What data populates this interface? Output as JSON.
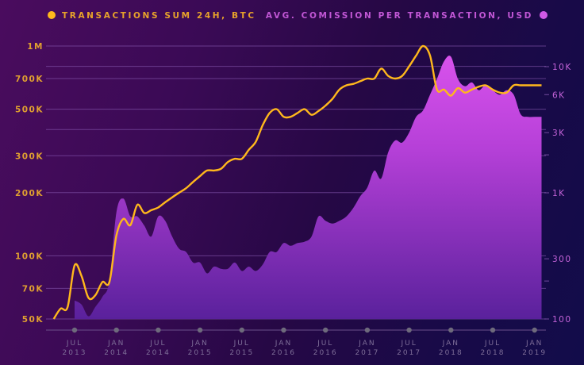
{
  "legend": {
    "left_label": "TRANSACTIONS SUM 24H, BTC",
    "right_label": "AVG. COMISSION PER TRANSACTION, USD"
  },
  "colors": {
    "line": "#ffb81c",
    "area_top": "#d24fe6",
    "area_bottom": "#5e20a0",
    "left_axis_text": "#e0a030",
    "right_axis_text": "#c463d8",
    "grid": "#8a5ab0"
  },
  "chart_data": {
    "type": "line+area",
    "title": "",
    "x_ticks": [
      {
        "line1": "JUL",
        "line2": "2013"
      },
      {
        "line1": "JAN",
        "line2": "2014"
      },
      {
        "line1": "JUL",
        "line2": "2014"
      },
      {
        "line1": "JAN",
        "line2": "2015"
      },
      {
        "line1": "JUL",
        "line2": "2015"
      },
      {
        "line1": "JAN",
        "line2": "2016"
      },
      {
        "line1": "JUL",
        "line2": "2016"
      },
      {
        "line1": "JAN",
        "line2": "2017"
      },
      {
        "line1": "JUL",
        "line2": "2017"
      },
      {
        "line1": "JAN",
        "line2": "2018"
      },
      {
        "line1": "JUL",
        "line2": "2018"
      },
      {
        "line1": "JAN",
        "line2": "2019"
      }
    ],
    "left_axis": {
      "label": "TRANSACTIONS SUM 24H, BTC",
      "scale": "log",
      "range": [
        50000,
        1000000
      ],
      "ticks": [
        "1M",
        "700K",
        "500K",
        "300K",
        "200K",
        "100K",
        "70K",
        "50K"
      ],
      "tick_values": [
        1000000,
        700000,
        500000,
        300000,
        200000,
        100000,
        70000,
        50000
      ]
    },
    "right_axis": {
      "label": "AVG. COMISSION PER TRANSACTION, USD",
      "scale": "log",
      "range": [
        100,
        10000
      ],
      "ticks": [
        "10K",
        "6K",
        "3K",
        "1K",
        "300",
        "100"
      ],
      "tick_values": [
        10000,
        6000,
        3000,
        1000,
        300,
        100
      ]
    },
    "series": [
      {
        "name": "TRANSACTIONS SUM 24H, BTC",
        "type": "line",
        "axis": "left",
        "x": [
          "2013-04",
          "2013-05",
          "2013-06",
          "2013-07",
          "2013-08",
          "2013-09",
          "2013-10",
          "2013-11",
          "2013-12",
          "2014-01",
          "2014-02",
          "2014-03",
          "2014-04",
          "2014-05",
          "2014-06",
          "2014-07",
          "2014-08",
          "2014-09",
          "2014-10",
          "2014-11",
          "2014-12",
          "2015-01",
          "2015-02",
          "2015-03",
          "2015-04",
          "2015-05",
          "2015-06",
          "2015-07",
          "2015-08",
          "2015-09",
          "2015-10",
          "2015-11",
          "2015-12",
          "2016-01",
          "2016-02",
          "2016-03",
          "2016-04",
          "2016-05",
          "2016-06",
          "2016-07",
          "2016-08",
          "2016-09",
          "2016-10",
          "2016-11",
          "2016-12",
          "2017-01",
          "2017-02",
          "2017-03",
          "2017-04",
          "2017-05",
          "2017-06",
          "2017-07",
          "2017-08",
          "2017-09",
          "2017-10",
          "2017-11",
          "2017-12",
          "2018-01",
          "2018-02",
          "2018-03",
          "2018-04",
          "2018-05",
          "2018-06",
          "2018-07",
          "2018-08",
          "2018-09",
          "2018-10",
          "2018-11",
          "2018-12",
          "2019-01",
          "2019-02"
        ],
        "values": [
          50000,
          56000,
          57000,
          90000,
          80000,
          63000,
          65000,
          75000,
          75000,
          125000,
          150000,
          140000,
          175000,
          160000,
          165000,
          170000,
          180000,
          190000,
          200000,
          210000,
          225000,
          240000,
          255000,
          255000,
          260000,
          280000,
          290000,
          290000,
          320000,
          350000,
          420000,
          480000,
          500000,
          460000,
          460000,
          480000,
          500000,
          470000,
          490000,
          520000,
          560000,
          620000,
          650000,
          660000,
          680000,
          700000,
          700000,
          780000,
          720000,
          700000,
          720000,
          800000,
          900000,
          1000000,
          900000,
          620000,
          620000,
          580000,
          630000,
          600000,
          620000,
          640000,
          650000,
          620000,
          600000,
          600000,
          650000,
          650000,
          650000,
          650000,
          650000
        ]
      },
      {
        "name": "AVG. COMISSION PER TRANSACTION, USD",
        "type": "area",
        "axis": "right",
        "x": [
          "2013-07",
          "2013-08",
          "2013-09",
          "2013-10",
          "2013-11",
          "2013-12",
          "2014-01",
          "2014-02",
          "2014-03",
          "2014-04",
          "2014-05",
          "2014-06",
          "2014-07",
          "2014-08",
          "2014-09",
          "2014-10",
          "2014-11",
          "2014-12",
          "2015-01",
          "2015-02",
          "2015-03",
          "2015-04",
          "2015-05",
          "2015-06",
          "2015-07",
          "2015-08",
          "2015-09",
          "2015-10",
          "2015-11",
          "2015-12",
          "2016-01",
          "2016-02",
          "2016-03",
          "2016-04",
          "2016-05",
          "2016-06",
          "2016-07",
          "2016-08",
          "2016-09",
          "2016-10",
          "2016-11",
          "2016-12",
          "2017-01",
          "2017-02",
          "2017-03",
          "2017-04",
          "2017-05",
          "2017-06",
          "2017-07",
          "2017-08",
          "2017-09",
          "2017-10",
          "2017-11",
          "2017-12",
          "2018-01",
          "2018-02",
          "2018-03",
          "2018-04",
          "2018-05",
          "2018-06",
          "2018-07",
          "2018-08",
          "2018-09",
          "2018-10",
          "2018-11",
          "2018-12",
          "2019-01",
          "2019-02"
        ],
        "values": [
          140,
          130,
          105,
          125,
          150,
          200,
          700,
          900,
          650,
          650,
          550,
          450,
          650,
          600,
          450,
          360,
          340,
          280,
          280,
          230,
          260,
          250,
          250,
          280,
          240,
          260,
          240,
          270,
          340,
          340,
          400,
          380,
          400,
          410,
          450,
          650,
          600,
          570,
          600,
          650,
          760,
          940,
          1100,
          1500,
          1300,
          2100,
          2600,
          2500,
          3000,
          4000,
          4500,
          6000,
          8000,
          11000,
          12000,
          8000,
          7000,
          7500,
          6500,
          7200,
          6500,
          6000,
          6500,
          6000,
          4200,
          4000,
          4000,
          4000
        ]
      }
    ],
    "grid": true,
    "legend_position": "top"
  }
}
